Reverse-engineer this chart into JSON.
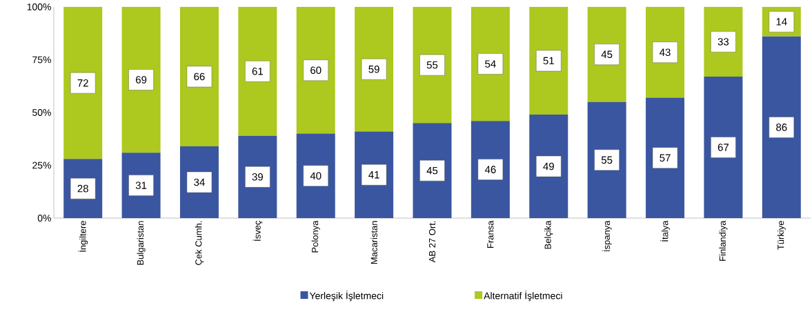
{
  "chart_data": {
    "type": "bar",
    "stacked": true,
    "categories": [
      "İngiltere",
      "Bulgaristan",
      "Çek Cumh.",
      "İsveç",
      "Polonya",
      "Macaristan",
      "AB 27 Ort.",
      "Fransa",
      "Belçika",
      "İspanya",
      "İtalya",
      "Finlandiya",
      "Türkiye"
    ],
    "series": [
      {
        "name": "Yerleşik İşletmeci",
        "color": "#3a56a0",
        "values": [
          28,
          31,
          34,
          39,
          40,
          41,
          45,
          46,
          49,
          55,
          57,
          67,
          86
        ]
      },
      {
        "name": "Alternatif İşletmeci",
        "color": "#adc81e",
        "values": [
          72,
          69,
          66,
          61,
          60,
          59,
          55,
          54,
          51,
          45,
          43,
          33,
          14
        ]
      }
    ],
    "ylim": [
      0,
      100
    ],
    "yticks": [
      {
        "value": 0,
        "label": "0%"
      },
      {
        "value": 25,
        "label": "25%"
      },
      {
        "value": 50,
        "label": "50%"
      },
      {
        "value": 75,
        "label": "75%"
      },
      {
        "value": 100,
        "label": "100%"
      }
    ],
    "data_labels": true,
    "grid": false,
    "legend": "bottom"
  }
}
